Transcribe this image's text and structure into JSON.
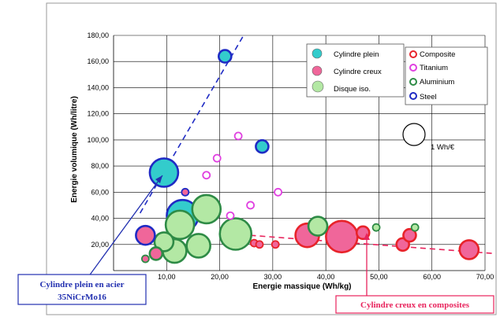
{
  "chart_data": {
    "type": "scatter",
    "title": "",
    "xlabel": "Energie massique  (Wh/kg)",
    "ylabel": "Energie volumique (Wh/litre)",
    "xlim": [
      0,
      70
    ],
    "ylim": [
      0,
      180
    ],
    "x_ticks": [
      "10,00",
      "20,00",
      "30,00",
      "40,00",
      "50,00",
      "60,00",
      "70,00"
    ],
    "y_ticks": [
      "20,00",
      "40,00",
      "60,00",
      "80,00",
      "100,00",
      "120,00",
      "140,00",
      "160,00",
      "180,00"
    ],
    "grid": "vertical and horizontal",
    "shape_legend": [
      {
        "label": "Cylindre plein",
        "fill": "#33cccc"
      },
      {
        "label": "Cylindre creux",
        "fill": "#f0669a"
      },
      {
        "label": "Disque iso.",
        "fill": "#b3e8a4"
      }
    ],
    "material_legend": [
      {
        "label": "Composite",
        "color": "#e8232a"
      },
      {
        "label": "Titanium",
        "color": "#e040e0"
      },
      {
        "label": "Aluminium",
        "color": "#2e8b46"
      },
      {
        "label": "Steel",
        "color": "#1f2bc4"
      }
    ],
    "size_legend_label": "1 Wh/€",
    "series": [
      {
        "name": "Composite",
        "points": [
          {
            "x": 26.5,
            "y": 21,
            "shape": "Cylindre creux",
            "size": 1
          },
          {
            "x": 27.5,
            "y": 20,
            "shape": "Cylindre creux",
            "size": 1
          },
          {
            "x": 30.5,
            "y": 20,
            "shape": "Cylindre creux",
            "size": 1
          },
          {
            "x": 36.5,
            "y": 27,
            "shape": "Cylindre creux",
            "size": 4
          },
          {
            "x": 43.0,
            "y": 26,
            "shape": "Cylindre creux",
            "size": 6
          },
          {
            "x": 47.0,
            "y": 29,
            "shape": "Cylindre creux",
            "size": 2
          },
          {
            "x": 54.5,
            "y": 20,
            "shape": "Cylindre creux",
            "size": 2
          },
          {
            "x": 55.8,
            "y": 27,
            "shape": "Cylindre creux",
            "size": 2
          },
          {
            "x": 67.0,
            "y": 16,
            "shape": "Cylindre creux",
            "size": 3
          }
        ]
      },
      {
        "name": "Titanium",
        "points": [
          {
            "x": 17.5,
            "y": 73,
            "shape": "Cylindre creux",
            "size": 1
          },
          {
            "x": 19.5,
            "y": 86,
            "shape": "Cylindre creux",
            "size": 1
          },
          {
            "x": 22.0,
            "y": 42,
            "shape": "Cylindre creux",
            "size": 1
          },
          {
            "x": 23.5,
            "y": 103,
            "shape": "Cylindre creux",
            "size": 1
          },
          {
            "x": 25.8,
            "y": 50,
            "shape": "Cylindre creux",
            "size": 1
          },
          {
            "x": 31.0,
            "y": 60,
            "shape": "Cylindre creux",
            "size": 1
          }
        ]
      },
      {
        "name": "Aluminium",
        "points": [
          {
            "x": 6.0,
            "y": 9,
            "shape": "Cylindre creux",
            "size": 1
          },
          {
            "x": 8.0,
            "y": 13,
            "shape": "Cylindre creux",
            "size": 2
          },
          {
            "x": 9.5,
            "y": 22,
            "shape": "Disque iso.",
            "size": 3
          },
          {
            "x": 11.5,
            "y": 15,
            "shape": "Disque iso.",
            "size": 4
          },
          {
            "x": 12.5,
            "y": 35,
            "shape": "Disque iso.",
            "size": 5
          },
          {
            "x": 16.0,
            "y": 19,
            "shape": "Disque iso.",
            "size": 4
          },
          {
            "x": 17.5,
            "y": 47,
            "shape": "Disque iso.",
            "size": 5
          },
          {
            "x": 23.0,
            "y": 28,
            "shape": "Disque iso.",
            "size": 6
          },
          {
            "x": 38.5,
            "y": 34,
            "shape": "Disque iso.",
            "size": 3
          },
          {
            "x": 49.5,
            "y": 33,
            "shape": "Disque iso.",
            "size": 1
          },
          {
            "x": 56.8,
            "y": 33,
            "shape": "Disque iso.",
            "size": 1
          }
        ]
      },
      {
        "name": "Steel",
        "points": [
          {
            "x": 6.0,
            "y": 27,
            "shape": "Cylindre creux",
            "size": 3
          },
          {
            "x": 9.5,
            "y": 75,
            "shape": "Cylindre plein",
            "size": 5
          },
          {
            "x": 13.5,
            "y": 60,
            "shape": "Cylindre creux",
            "size": 1
          },
          {
            "x": 13.0,
            "y": 42,
            "shape": "Cylindre plein",
            "size": 6
          },
          {
            "x": 21.0,
            "y": 164,
            "shape": "Cylindre plein",
            "size": 2
          },
          {
            "x": 28.0,
            "y": 95,
            "shape": "Cylindre plein",
            "size": 2
          }
        ]
      }
    ],
    "trend_lines": [
      {
        "name": "steel-trend",
        "color": "#1f2bc4",
        "points": [
          [
            5,
            44
          ],
          [
            24.5,
            180
          ]
        ]
      },
      {
        "name": "composite-trend",
        "color": "#e8235c",
        "points": [
          [
            24,
            27.5
          ],
          [
            72,
            13
          ]
        ]
      }
    ],
    "annotations": [
      {
        "text_lines": [
          "Cylindre plein en acier",
          "35NiCrMo16"
        ],
        "color": "#2230b0",
        "points_to": [
          9.5,
          75
        ]
      },
      {
        "text_lines": [
          "Cylindre creux en composites"
        ],
        "color": "#e8235c",
        "points_to": [
          46.5,
          21
        ]
      }
    ]
  }
}
